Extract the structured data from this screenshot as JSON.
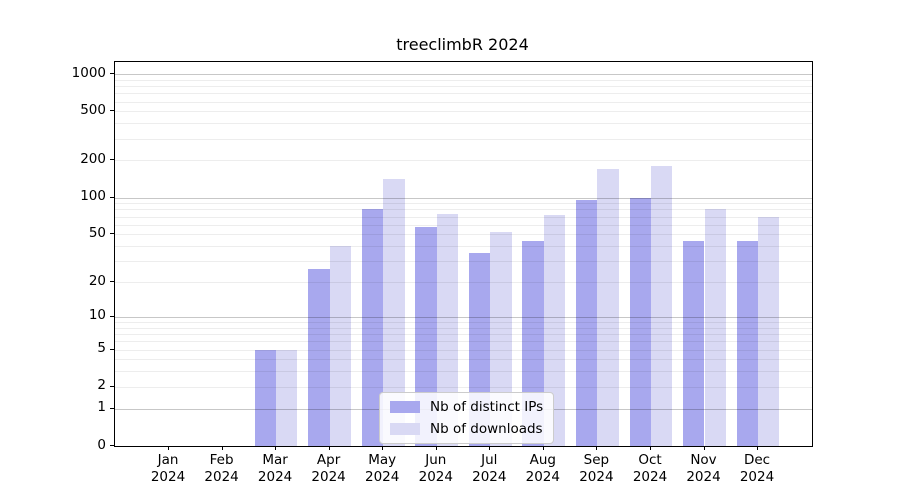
{
  "title": "treeclimbR 2024",
  "legend": {
    "items": [
      {
        "label": "Nb of distinct IPs",
        "color": "#a8a8ee"
      },
      {
        "label": "Nb of downloads",
        "color": "#d9d9f4"
      }
    ]
  },
  "chart_data": {
    "type": "bar",
    "title": "treeclimbR 2024",
    "categories": [
      "Jan 2024",
      "Feb 2024",
      "Mar 2024",
      "Apr 2024",
      "May 2024",
      "Jun 2024",
      "Jul 2024",
      "Aug 2024",
      "Sep 2024",
      "Oct 2024",
      "Nov 2024",
      "Dec 2024"
    ],
    "series": [
      {
        "name": "Nb of distinct IPs",
        "color": "#a8a8ee",
        "values": [
          0,
          0,
          5,
          26,
          81,
          57,
          35,
          44,
          95,
          100,
          44,
          44
        ]
      },
      {
        "name": "Nb of downloads",
        "color": "#d9d9f4",
        "values": [
          0,
          0,
          5,
          40,
          141,
          73,
          52,
          72,
          170,
          181,
          81,
          70
        ]
      }
    ],
    "yscale": "log1p",
    "yticks": [
      0,
      1,
      2,
      5,
      10,
      20,
      50,
      100,
      200,
      500,
      1000
    ],
    "ylim": [
      0,
      1250
    ],
    "grid": true,
    "legend_position": "lower center"
  }
}
